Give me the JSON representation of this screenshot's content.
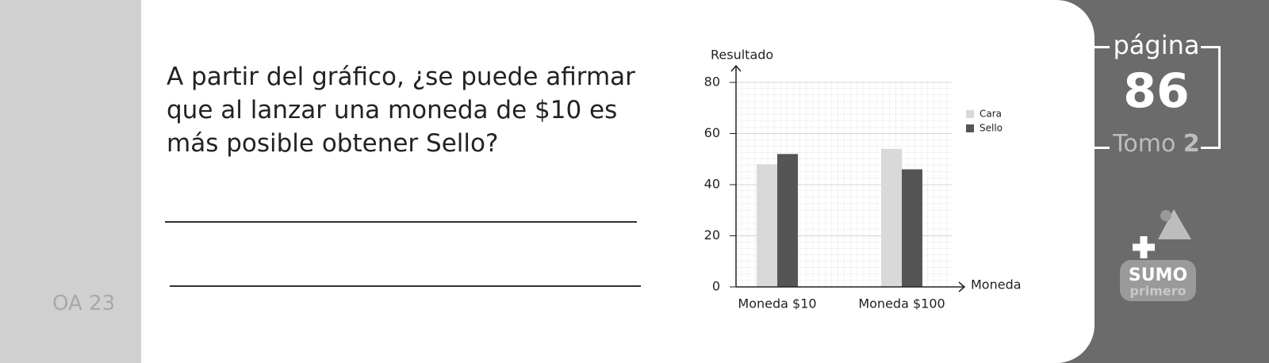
{
  "sidebar": {
    "code": "OA 23"
  },
  "question": "A partir del gráfico, ¿se puede afirmar que al lanzar una moneda de $10 es más posible obtener Sello?",
  "chart_data": {
    "type": "bar",
    "y_label": "Resultado",
    "x_label": "Moneda",
    "categories": [
      "Moneda $10",
      "Moneda $100"
    ],
    "series": [
      {
        "name": "Cara",
        "color": "#d9d9d9",
        "values": [
          48,
          54
        ]
      },
      {
        "name": "Sello",
        "color": "#555555",
        "values": [
          52,
          46
        ]
      }
    ],
    "ylim": [
      0,
      80
    ],
    "yticks": [
      0,
      20,
      40,
      60,
      80
    ],
    "grid": true
  },
  "page_badge": {
    "label": "página",
    "number": "86",
    "volume_label": "Tomo",
    "volume": "2"
  },
  "logo": {
    "name": "SUMO",
    "subname": "primero"
  }
}
